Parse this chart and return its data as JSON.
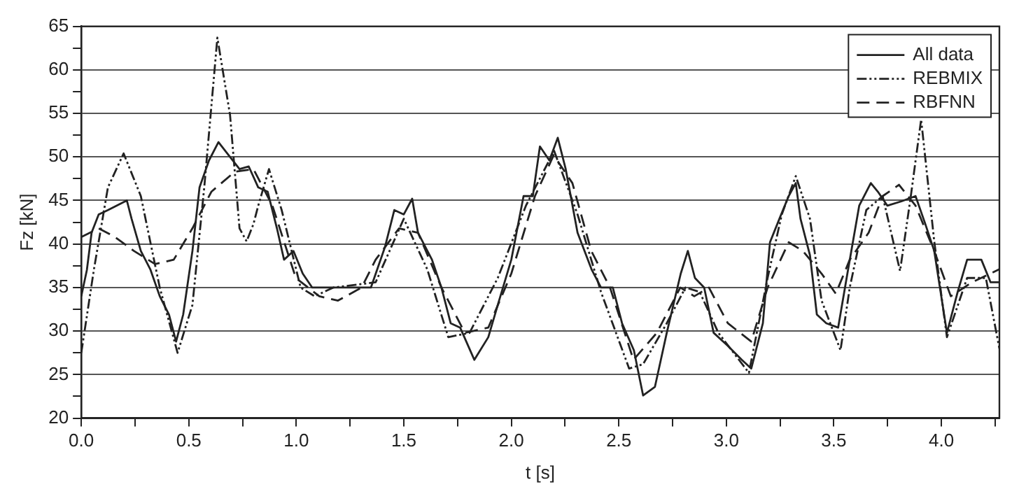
{
  "chart_data": {
    "type": "line",
    "xlabel": "t [s]",
    "ylabel": "Fz [kN]",
    "xlim": [
      0,
      4.27
    ],
    "ylim": [
      20,
      65
    ],
    "xticks": [
      {
        "value": 0,
        "label": "0.0"
      },
      {
        "value": 0.25,
        "label": null
      },
      {
        "value": 0.5,
        "label": "0.5"
      },
      {
        "value": 0.75,
        "label": null
      },
      {
        "value": 1,
        "label": "1.0"
      },
      {
        "value": 1.25,
        "label": null
      },
      {
        "value": 1.5,
        "label": "1.5"
      },
      {
        "value": 1.75,
        "label": null
      },
      {
        "value": 2,
        "label": "2.0"
      },
      {
        "value": 2.25,
        "label": null
      },
      {
        "value": 2.5,
        "label": "2.5"
      },
      {
        "value": 2.75,
        "label": null
      },
      {
        "value": 3,
        "label": "3.0"
      },
      {
        "value": 3.25,
        "label": null
      },
      {
        "value": 3.5,
        "label": "3.5"
      },
      {
        "value": 3.75,
        "label": null
      },
      {
        "value": 4,
        "label": "4.0"
      },
      {
        "value": 4.25,
        "label": null
      }
    ],
    "yticks": [
      20,
      {
        "value": 22.5,
        "label": null
      },
      25,
      {
        "value": 27.5,
        "label": null
      },
      30,
      {
        "value": 32.5,
        "label": null
      },
      35,
      {
        "value": 37.5,
        "label": null
      },
      40,
      {
        "value": 42.5,
        "label": null
      },
      45,
      {
        "value": 47.5,
        "label": null
      },
      50,
      {
        "value": 52.5,
        "label": null
      },
      55,
      {
        "value": 57.5,
        "label": null
      },
      60,
      {
        "value": 62.5,
        "label": null
      },
      65
    ],
    "grid": "y",
    "legend": "top right",
    "marker": "none",
    "series": [
      {
        "name": "All data",
        "color": "#222222",
        "line_style": "solid",
        "x": [
          0,
          0.026,
          0.048,
          0.081,
          0.124,
          0.212,
          0.234,
          0.277,
          0.321,
          0.365,
          0.408,
          0.441,
          0.474,
          0.517,
          0.55,
          0.594,
          0.638,
          0.692,
          0.736,
          0.779,
          0.823,
          0.867,
          0.91,
          0.943,
          0.987,
          1.03,
          1.074,
          1.172,
          1.282,
          1.347,
          1.413,
          1.456,
          1.5,
          1.539,
          1.566,
          1.631,
          1.675,
          1.718,
          1.762,
          1.828,
          1.893,
          1.937,
          2.0,
          2.057,
          2.1,
          2.133,
          2.177,
          2.216,
          2.253,
          2.308,
          2.373,
          2.417,
          2.472,
          2.515,
          2.57,
          2.613,
          2.668,
          2.723,
          2.788,
          2.821,
          2.854,
          2.897,
          2.941,
          3.007,
          3.072,
          3.116,
          3.17,
          3.203,
          3.247,
          3.29,
          3.323,
          3.345,
          3.389,
          3.421,
          3.465,
          3.52,
          3.563,
          3.618,
          3.672,
          3.705,
          3.749,
          3.814,
          3.88,
          3.924,
          3.967,
          4.026,
          4.076,
          4.12,
          4.186,
          4.229,
          4.27
        ],
        "values": [
          34,
          37,
          41.3,
          43.4,
          43.9,
          45,
          42.9,
          39.2,
          37.1,
          34,
          31.9,
          28.8,
          31.9,
          39.2,
          46.5,
          49.6,
          51.7,
          50,
          48.6,
          48.9,
          46.5,
          46,
          41.8,
          38.2,
          39.2,
          36.6,
          35,
          35,
          35,
          35,
          39.7,
          43.9,
          43.4,
          45.2,
          41.3,
          38.2,
          35,
          30.9,
          30.4,
          26.7,
          29.3,
          33,
          38.2,
          45.5,
          45.5,
          51.2,
          49.6,
          52.2,
          48.6,
          41.3,
          37.1,
          35,
          35,
          30.9,
          27.8,
          22.6,
          23.6,
          29.8,
          36.6,
          39.2,
          36.1,
          35,
          29.8,
          28.3,
          26.7,
          25.7,
          30.9,
          40.2,
          42.9,
          45.5,
          47,
          42.9,
          38.7,
          31.9,
          30.9,
          30.4,
          36.6,
          44.4,
          47,
          46,
          44.4,
          44.9,
          45.5,
          42.4,
          39.2,
          29.8,
          34.5,
          38.2,
          38.2,
          35.6,
          35.6
        ]
      },
      {
        "name": "REBMIX",
        "color": "#222222",
        "line_style": "dashdot",
        "x": [
          0,
          0.059,
          0.124,
          0.197,
          0.277,
          0.365,
          0.448,
          0.517,
          0.572,
          0.633,
          0.692,
          0.736,
          0.769,
          0.801,
          0.823,
          0.873,
          0.932,
          1.02,
          1.085,
          1.172,
          1.369,
          1.5,
          1.609,
          1.707,
          1.806,
          1.937,
          2.068,
          2.199,
          2.308,
          2.417,
          2.548,
          2.613,
          2.723,
          2.81,
          2.876,
          2.963,
          3.105,
          3.192,
          3.258,
          3.323,
          3.389,
          3.443,
          3.531,
          3.574,
          3.651,
          3.727,
          3.808,
          3.858,
          3.906,
          3.967,
          4.026,
          4.12,
          4.207,
          4.27
        ],
        "values": [
          27.5,
          37.1,
          46.5,
          50.4,
          45.5,
          35,
          27.5,
          33,
          46.5,
          63.7,
          54.8,
          41.8,
          40.3,
          42.3,
          44.4,
          48.6,
          43.9,
          35,
          34,
          35,
          35.6,
          42.9,
          37.1,
          29.3,
          29.8,
          36.1,
          44.4,
          50.7,
          43.4,
          34.5,
          25.7,
          26.2,
          30.9,
          35,
          34.5,
          29.8,
          25.2,
          36.1,
          43.4,
          47.8,
          42.9,
          33.5,
          27.8,
          35,
          43.9,
          45.5,
          36.9,
          45.5,
          54.3,
          40.3,
          29.3,
          36.1,
          36.1,
          28
        ]
      },
      {
        "name": "RBFNN",
        "color": "#222222",
        "line_style": "dashed",
        "x": [
          0,
          0.081,
          0.157,
          0.245,
          0.343,
          0.43,
          0.517,
          0.605,
          0.714,
          0.801,
          0.889,
          0.998,
          1.107,
          1.194,
          1.304,
          1.369,
          1.478,
          1.566,
          1.675,
          1.784,
          1.893,
          2.0,
          2.11,
          2.197,
          2.284,
          2.372,
          2.459,
          2.568,
          2.677,
          2.786,
          2.851,
          2.919,
          3.007,
          3.116,
          3.192,
          3.29,
          3.356,
          3.443,
          3.509,
          3.574,
          3.662,
          3.727,
          3.803,
          3.88,
          3.967,
          4.044,
          4.142,
          4.27
        ],
        "values": [
          40.8,
          41.8,
          40.8,
          39.2,
          37.7,
          38.2,
          41.8,
          46,
          48.3,
          48.6,
          44.4,
          36.1,
          34,
          33.5,
          35,
          38.2,
          41.8,
          41.3,
          35,
          29.8,
          30.4,
          36.6,
          45.5,
          50.2,
          47,
          39.2,
          35,
          26.7,
          29.8,
          35,
          34,
          35,
          30.9,
          28.8,
          35,
          40.2,
          39.2,
          36.6,
          34.3,
          38.2,
          41.3,
          45.5,
          46.8,
          44.4,
          39.2,
          34,
          35.6,
          37.1
        ]
      }
    ]
  }
}
